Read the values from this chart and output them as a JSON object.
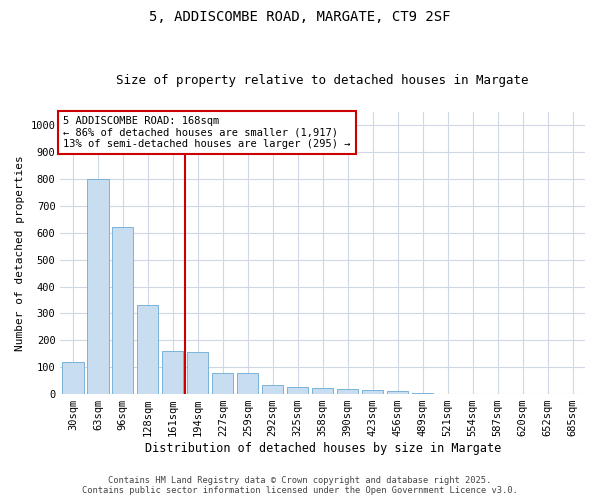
{
  "title1": "5, ADDISCOMBE ROAD, MARGATE, CT9 2SF",
  "title2": "Size of property relative to detached houses in Margate",
  "xlabel": "Distribution of detached houses by size in Margate",
  "ylabel": "Number of detached properties",
  "categories": [
    "30sqm",
    "63sqm",
    "96sqm",
    "128sqm",
    "161sqm",
    "194sqm",
    "227sqm",
    "259sqm",
    "292sqm",
    "325sqm",
    "358sqm",
    "390sqm",
    "423sqm",
    "456sqm",
    "489sqm",
    "521sqm",
    "554sqm",
    "587sqm",
    "620sqm",
    "652sqm",
    "685sqm"
  ],
  "values": [
    120,
    800,
    620,
    330,
    160,
    155,
    80,
    80,
    35,
    28,
    22,
    20,
    15,
    12,
    5,
    0,
    0,
    0,
    0,
    0,
    0
  ],
  "bar_color": "#c9ddf0",
  "bar_edge_color": "#6aaad4",
  "vline_color": "#cc0000",
  "vline_position": 4.5,
  "annotation_text": "5 ADDISCOMBE ROAD: 168sqm\n← 86% of detached houses are smaller (1,917)\n13% of semi-detached houses are larger (295) →",
  "annotation_box_facecolor": "#ffffff",
  "annotation_box_edgecolor": "#cc0000",
  "ylim": [
    0,
    1050
  ],
  "yticks": [
    0,
    100,
    200,
    300,
    400,
    500,
    600,
    700,
    800,
    900,
    1000
  ],
  "grid_color": "#d0d8e8",
  "bg_color": "#ffffff",
  "footer1": "Contains HM Land Registry data © Crown copyright and database right 2025.",
  "footer2": "Contains public sector information licensed under the Open Government Licence v3.0.",
  "title1_fontsize": 10,
  "title2_fontsize": 9,
  "tick_fontsize": 7.5,
  "ylabel_fontsize": 8,
  "xlabel_fontsize": 8.5
}
